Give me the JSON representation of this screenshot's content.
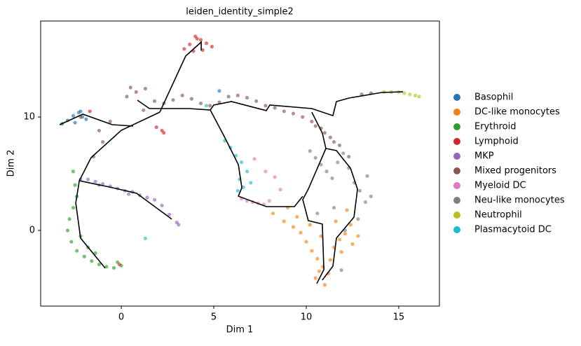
{
  "chart_data": {
    "type": "scatter",
    "title": "leiden_identity_simple2",
    "x_label": "Dim 1",
    "y_label": "Dim 2",
    "xlim": [
      -4.36,
      17.2
    ],
    "ylim": [
      -6.67,
      18.46
    ],
    "xticks": [
      0,
      5,
      10,
      15
    ],
    "yticks": [
      0,
      10
    ],
    "grid": false,
    "legend": "right",
    "series": [
      {
        "name": "Basophil",
        "color": "#1f77b4",
        "x": [
          -3.2,
          -2.9,
          -2.6,
          -2.3,
          -2.1,
          -1.9,
          -2.5,
          -2.2,
          5.3
        ],
        "y": [
          9.4,
          9.7,
          10.1,
          10.4,
          10.0,
          9.8,
          9.5,
          10.5,
          12.3
        ]
      },
      {
        "name": "DC-like monocytes",
        "color": "#ff7f0e",
        "x": [
          8.2,
          8.8,
          9.3,
          9.7,
          10.0,
          10.3,
          10.6,
          10.9,
          11.2,
          11.5,
          11.8,
          12.1,
          12.4,
          12.8,
          9.5,
          10.2,
          10.8,
          11.3,
          11.9,
          12.5,
          9.0,
          10.5,
          11.0,
          10.7,
          11.6,
          12.2
        ],
        "y": [
          1.5,
          0.8,
          0.3,
          -0.2,
          -1.0,
          -1.8,
          -2.5,
          -3.2,
          -3.8,
          -1.5,
          -0.8,
          -0.3,
          0.5,
          -0.5,
          1.2,
          0.5,
          -0.5,
          -2.6,
          -1.9,
          -1.2,
          2.0,
          -4.2,
          -4.8,
          -3.6,
          0.8,
          1.8
        ]
      },
      {
        "name": "Erythroid",
        "color": "#2ca02c",
        "x": [
          -2.5,
          -2.4,
          -2.6,
          -2.8,
          -2.9,
          -2.7,
          -2.4,
          -2.0,
          -1.6,
          -1.2,
          -0.8,
          -0.4,
          0.0,
          -2.2,
          -1.8,
          -1.4,
          -2.6,
          -0.2
        ],
        "y": [
          4.0,
          3.0,
          2.0,
          1.0,
          0.0,
          -1.0,
          -1.8,
          -2.3,
          -2.7,
          -3.0,
          -3.2,
          -3.3,
          -3.1,
          -0.5,
          -1.5,
          -2.0,
          5.2,
          -2.8
        ]
      },
      {
        "name": "Lymphoid",
        "color": "#d62728",
        "x": [
          3.4,
          3.7,
          4.0,
          4.3,
          4.6,
          4.9,
          3.9,
          4.4,
          4.1,
          1.9,
          2.2,
          2.3,
          -0.1,
          -1.7
        ],
        "y": [
          16.0,
          16.4,
          17.1,
          16.8,
          16.5,
          16.2,
          15.8,
          15.9,
          16.9,
          9.1,
          8.8,
          8.6,
          -3.0,
          10.5
        ]
      },
      {
        "name": "MKP",
        "color": "#9467bd",
        "x": [
          -2.2,
          -1.8,
          -1.4,
          -1.0,
          -0.6,
          -0.2,
          0.2,
          0.6,
          1.0,
          1.4,
          1.8,
          2.2,
          2.6,
          3.0,
          3.1,
          0.4,
          -1.2
        ],
        "y": [
          4.5,
          4.5,
          4.3,
          4.1,
          3.9,
          3.7,
          3.5,
          3.4,
          3.1,
          2.9,
          2.7,
          2.2,
          1.4,
          0.7,
          0.5,
          3.2,
          4.0
        ]
      },
      {
        "name": "Mixed progenitors",
        "color": "#8c564b",
        "x": [
          0.3,
          0.8,
          1.3,
          1.8,
          2.3,
          2.8,
          3.3,
          3.8,
          4.3,
          4.8,
          5.3,
          5.8,
          6.3,
          6.8,
          7.3,
          7.8,
          8.3,
          8.8,
          9.3,
          9.8,
          10.3,
          10.8,
          11.3,
          11.8,
          12.3,
          13.0,
          13.5,
          10.5,
          11.0,
          11.5,
          -1.2,
          -1.5,
          -1.0,
          -0.6,
          -2.2,
          1.2,
          0.5
        ],
        "y": [
          11.8,
          12.2,
          12.5,
          11.4,
          11.2,
          11.5,
          11.9,
          11.6,
          11.2,
          11.0,
          11.3,
          11.8,
          11.9,
          11.7,
          11.4,
          11.0,
          10.8,
          10.5,
          10.3,
          10.0,
          9.6,
          9.0,
          8.2,
          7.5,
          6.5,
          12.0,
          12.1,
          9.2,
          8.6,
          7.8,
          8.8,
          6.5,
          7.8,
          9.6,
          10.0,
          10.6,
          12.6
        ]
      },
      {
        "name": "Myeloid DC",
        "color": "#e377c2",
        "x": [
          6.5,
          6.8,
          7.1,
          7.4,
          7.7,
          8.0,
          8.3,
          7.2,
          7.8,
          8.6
        ],
        "y": [
          2.8,
          2.6,
          2.5,
          2.4,
          2.3,
          2.6,
          4.7,
          6.3,
          5.2,
          3.6
        ]
      },
      {
        "name": "Neu-like monocytes",
        "color": "#7f7f7f",
        "x": [
          10.2,
          10.5,
          10.8,
          11.1,
          11.4,
          11.7,
          12.0,
          12.3,
          12.6,
          12.9,
          13.2,
          13.5,
          12.8,
          12.1,
          11.5,
          13.3,
          10.6,
          11.9
        ],
        "y": [
          7.0,
          6.4,
          5.8,
          5.2,
          4.6,
          6.0,
          6.8,
          5.5,
          4.2,
          3.5,
          2.5,
          3.0,
          1.0,
          0.0,
          2.0,
          4.8,
          1.5,
          -3.5
        ]
      },
      {
        "name": "Neutrophil",
        "color": "#bcbd22",
        "x": [
          14.2,
          14.6,
          15.0,
          15.3,
          15.6,
          15.9,
          16.1
        ],
        "y": [
          12.2,
          12.2,
          12.2,
          12.1,
          12.0,
          11.9,
          11.8
        ]
      },
      {
        "name": "Plasmacytoid DC",
        "color": "#17becf",
        "x": [
          5.6,
          5.9,
          6.2,
          6.5,
          6.8,
          6.4,
          6.6,
          7.0,
          6.3,
          1.3,
          4.6
        ],
        "y": [
          7.9,
          7.3,
          6.6,
          6.0,
          5.2,
          4.5,
          3.8,
          4.2,
          3.5,
          -0.7,
          11.0
        ]
      }
    ],
    "trajectory": {
      "color": "#000000",
      "x": [
        -3.33,
        -2.08,
        -0.49,
        0.64,
        null,
        2.08,
        0,
        -1.63,
        -2.27,
        -2.46,
        -2.2,
        -0.87,
        null,
        -2.27,
        -0.49,
        0.83,
        2.73,
        null,
        2.08,
        3.48,
        4.32,
        4.32,
        null,
        0.87,
        1.52,
        3.67,
        4.81,
        5.0,
        5.95,
        7.84,
        8.03,
        10.3,
        11.44,
        11.63,
        12.31,
        14.09,
        15.23,
        null,
        4.81,
        5.57,
        6.33,
        6.52,
        6.33,
        7.84,
        9.36,
        9.81,
        null,
        10.3,
        10.87,
        11.06,
        11.63,
        12.39,
        12.77,
        12.58,
        11.63,
        11.44,
        10.87,
        null,
        11.06,
        10.11,
        9.81,
        10.11,
        10.87,
        10.95,
        10.57
      ],
      "y": [
        9.32,
        10.25,
        9.32,
        9.2,
        null,
        10.43,
        8.83,
        6.42,
        4.38,
        2.41,
        -0.68,
        -3.33,
        null,
        4.38,
        3.77,
        3.27,
        0.99,
        null,
        10.43,
        15.37,
        16.6,
        15.86,
        null,
        11.48,
        10.74,
        10.74,
        10.62,
        11.05,
        11.36,
        10.56,
        11.05,
        10.74,
        10.12,
        11.36,
        11.67,
        12.16,
        12.22,
        null,
        10.62,
        8.27,
        5.8,
        3.77,
        3.02,
        2.1,
        2.1,
        3.02,
        null,
        10.43,
        8.58,
        7.22,
        7.04,
        5.49,
        3.64,
        1.17,
        -0.68,
        -3.15,
        -4.38,
        null,
        7.22,
        3.64,
        2.72,
        0.86,
        0.56,
        -3.46,
        -4.69
      ]
    }
  }
}
